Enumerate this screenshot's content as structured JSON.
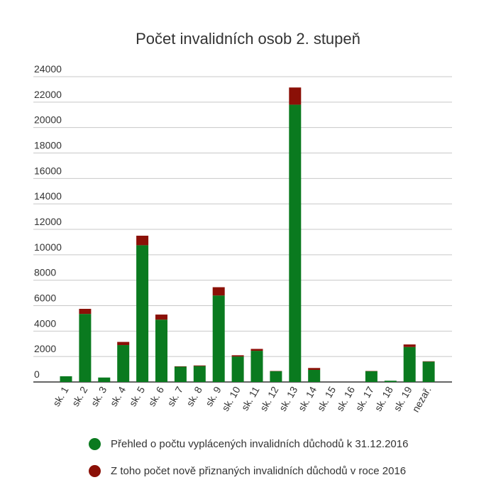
{
  "chart_data": {
    "type": "bar",
    "stacked": true,
    "title": "Počet invalidních osob 2. stupeň",
    "xlabel": "",
    "ylabel": "",
    "ylim": [
      0,
      24000
    ],
    "yticks": [
      "0",
      "2000",
      "4000",
      "6000",
      "8000",
      "10000",
      "12000",
      "14000",
      "16000",
      "18000",
      "20000",
      "22000",
      "24000"
    ],
    "grid": true,
    "legend_position": "bottom",
    "categories": [
      "sk. 1",
      "sk. 2",
      "sk. 3",
      "sk. 4",
      "sk. 5",
      "sk. 6",
      "sk. 7",
      "sk. 8",
      "sk. 9",
      "sk. 10",
      "sk. 11",
      "sk. 12",
      "sk. 13",
      "sk. 14",
      "sk. 15",
      "sk. 16",
      "sk. 17",
      "sk. 18",
      "sk. 19",
      "nezař."
    ],
    "series": [
      {
        "name": "Přehled o počtu vyplácených invalidních důchodů k 31.12.2016",
        "color": "#0a7a1f",
        "values": [
          450,
          5350,
          350,
          2900,
          10750,
          4900,
          1200,
          1250,
          6800,
          2000,
          2450,
          850,
          21800,
          950,
          0,
          0,
          850,
          100,
          2750,
          1600
        ]
      },
      {
        "name": "Z toho počet nově přiznaných invalidních důchodů v roce 2016",
        "color": "#8b1007",
        "values": [
          0,
          400,
          0,
          250,
          750,
          400,
          30,
          50,
          650,
          100,
          150,
          20,
          1350,
          150,
          0,
          0,
          20,
          0,
          200,
          30
        ]
      }
    ]
  }
}
